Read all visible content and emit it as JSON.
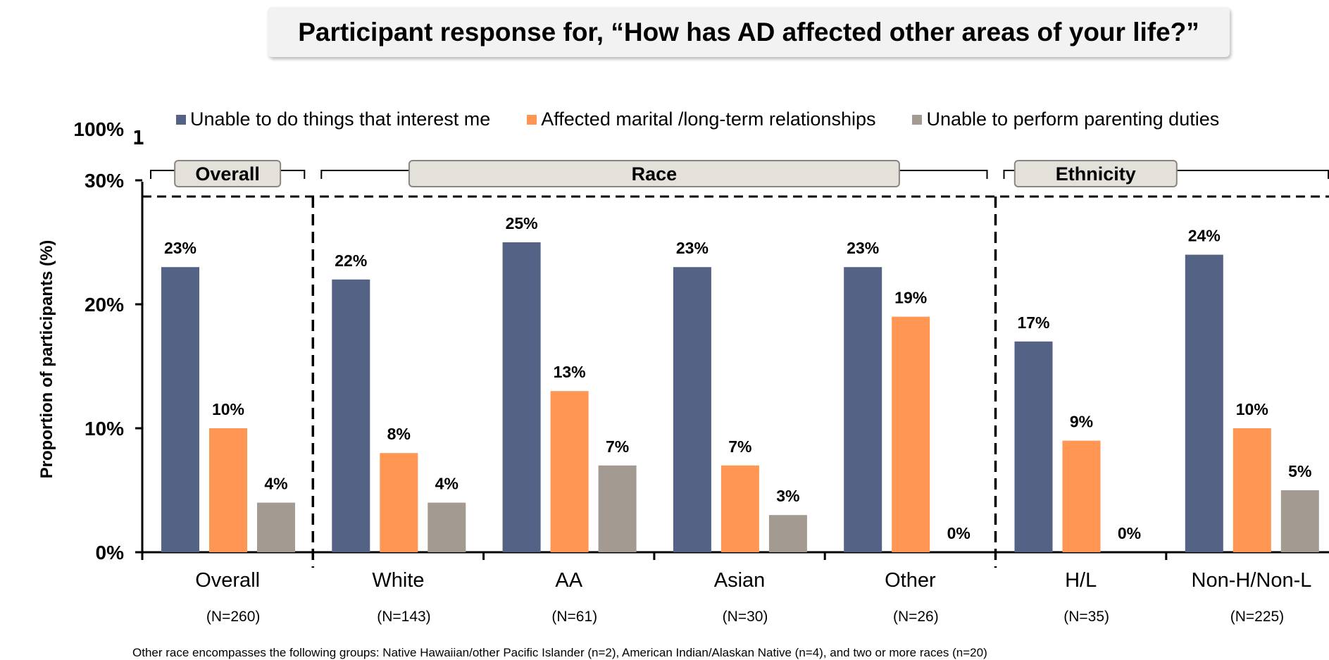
{
  "title": "Participant response for, “How has AD affected other areas of your life?”",
  "footnote": "Other race encompasses the following groups: Native Hawaiian/other Pacific Islander (n=2), American Indian/Alaskan Native (n=4), and two or more races (n=20)",
  "colors": {
    "series1": "#546285",
    "series2": "#ff9653",
    "series3": "#a39a92"
  },
  "chart_data": {
    "type": "bar",
    "title": "",
    "xlabel": "",
    "ylabel": "Proportion of participants (%)",
    "ylim": [
      0,
      30
    ],
    "yticks": [
      "0%",
      "10%",
      "20%",
      "30%"
    ],
    "ytick_break": "100%",
    "ytick_break_mark": "1",
    "legend_position": "top",
    "categories": [
      "Overall",
      "White",
      "AA",
      "Asian",
      "Other",
      "H/L",
      "Non-H/Non-L"
    ],
    "sample_sizes": [
      "(N=260)",
      "(N=143)",
      "(N=61)",
      "(N=30)",
      "(N=26)",
      "(N=35)",
      "(N=225)"
    ],
    "groups": [
      {
        "label": "Overall",
        "categories": [
          "Overall"
        ]
      },
      {
        "label": "Race",
        "categories": [
          "White",
          "AA",
          "Asian",
          "Other"
        ]
      },
      {
        "label": "Ethnicity",
        "categories": [
          "H/L",
          "Non-H/Non-L"
        ]
      }
    ],
    "series": [
      {
        "name": "Unable to do things that interest me",
        "values": [
          23,
          22,
          25,
          23,
          23,
          17,
          24
        ],
        "labels": [
          "23%",
          "22%",
          "25%",
          "23%",
          "23%",
          "17%",
          "24%"
        ]
      },
      {
        "name": "Affected marital /long-term relationships",
        "values": [
          10,
          8,
          13,
          7,
          19,
          9,
          10
        ],
        "labels": [
          "10%",
          "8%",
          "13%",
          "7%",
          "19%",
          "9%",
          "10%"
        ]
      },
      {
        "name": "Unable to perform parenting duties",
        "values": [
          4,
          4,
          7,
          3,
          0,
          0,
          5
        ],
        "labels": [
          "4%",
          "4%",
          "7%",
          "3%",
          "0%",
          "0%",
          "5%"
        ]
      }
    ]
  }
}
